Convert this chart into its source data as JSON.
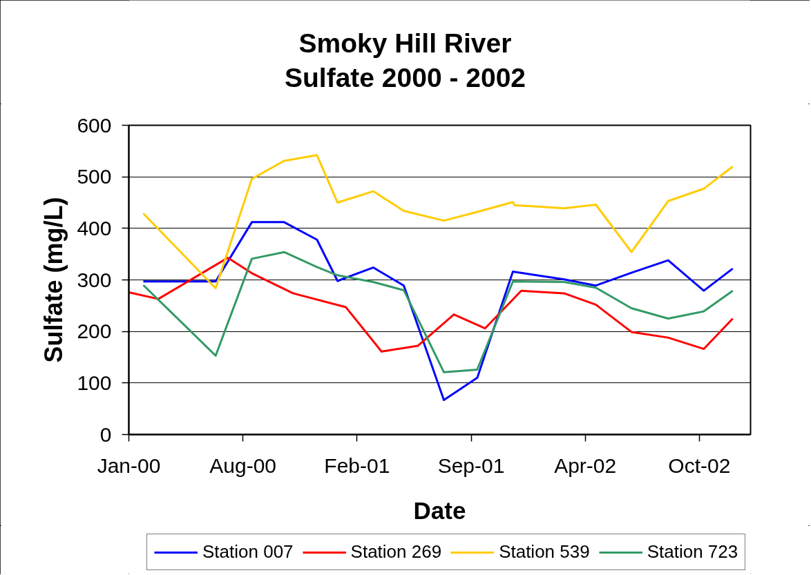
{
  "chart_data": {
    "type": "line",
    "title": "Smoky Hill River",
    "subtitle": "Sulfate 2000 - 2002",
    "xlabel": "Date",
    "ylabel": "Sulfate (mg/L)",
    "xlim": [
      "2000-01-10",
      "2003-01-31"
    ],
    "xticks": [
      {
        "value": "2000-01-10",
        "label": "Jan-00"
      },
      {
        "value": "2000-08-02",
        "label": "Aug-00"
      },
      {
        "value": "2001-02-23",
        "label": "Feb-01"
      },
      {
        "value": "2001-09-16",
        "label": "Sep-01"
      },
      {
        "value": "2002-04-09",
        "label": "Apr-02"
      },
      {
        "value": "2002-10-31",
        "label": "Oct-02"
      }
    ],
    "ylim": [
      0,
      600
    ],
    "yticks": [
      0,
      100,
      200,
      300,
      400,
      500,
      600
    ],
    "grid": "y",
    "legend": "bottom",
    "line_style": "solid",
    "series": [
      {
        "name": "Station 007",
        "color": "#0000ff",
        "x": [
          "2000-02-05",
          "2000-06-14",
          "2000-08-18",
          "2000-10-15",
          "2000-12-13",
          "2001-01-19",
          "2001-03-24",
          "2001-05-18",
          "2001-07-29",
          "2001-09-27",
          "2001-11-30",
          "2002-03-02",
          "2002-04-28",
          "2002-07-01",
          "2002-09-05",
          "2002-11-08",
          "2002-12-30"
        ],
        "values": [
          297,
          297,
          412,
          412,
          378,
          298,
          324,
          289,
          67,
          110,
          316,
          301,
          289,
          314,
          338,
          279,
          322
        ]
      },
      {
        "name": "Station 269",
        "color": "#ff0000",
        "x": [
          "2000-01-10",
          "2000-03-03",
          "2000-07-06",
          "2000-08-18",
          "2000-10-31",
          "2001-02-03",
          "2001-04-08",
          "2001-06-12",
          "2001-08-16",
          "2001-10-11",
          "2001-12-15",
          "2002-03-02",
          "2002-04-28",
          "2002-07-01",
          "2002-09-05",
          "2002-11-08",
          "2002-12-30"
        ],
        "values": [
          276,
          263,
          343,
          313,
          274,
          247,
          161,
          172,
          233,
          206,
          279,
          274,
          252,
          199,
          188,
          166,
          225
        ]
      },
      {
        "name": "Station 539",
        "color": "#ffcc00",
        "x": [
          "2000-02-05",
          "2000-06-14",
          "2000-08-18",
          "2000-10-15",
          "2000-12-13",
          "2001-01-19",
          "2001-03-24",
          "2001-05-18",
          "2001-07-29",
          "2001-09-27",
          "2001-11-30",
          "2001-12-03",
          "2002-03-02",
          "2002-04-28",
          "2002-07-01",
          "2002-09-05",
          "2002-11-08",
          "2002-12-30"
        ],
        "values": [
          429,
          284,
          496,
          531,
          542,
          450,
          472,
          434,
          415,
          432,
          451,
          445,
          439,
          446,
          354,
          453,
          477,
          520
        ]
      },
      {
        "name": "Station 723",
        "color": "#339966",
        "x": [
          "2000-02-05",
          "2000-06-14",
          "2000-08-18",
          "2000-10-15",
          "2000-12-13",
          "2001-01-19",
          "2001-03-24",
          "2001-05-18",
          "2001-07-29",
          "2001-09-27",
          "2001-11-30",
          "2002-03-02",
          "2002-04-28",
          "2002-07-01",
          "2002-09-05",
          "2002-11-08",
          "2002-12-30"
        ],
        "values": [
          290,
          153,
          341,
          354,
          325,
          309,
          296,
          280,
          121,
          126,
          297,
          296,
          285,
          245,
          225,
          239,
          279
        ]
      }
    ]
  }
}
